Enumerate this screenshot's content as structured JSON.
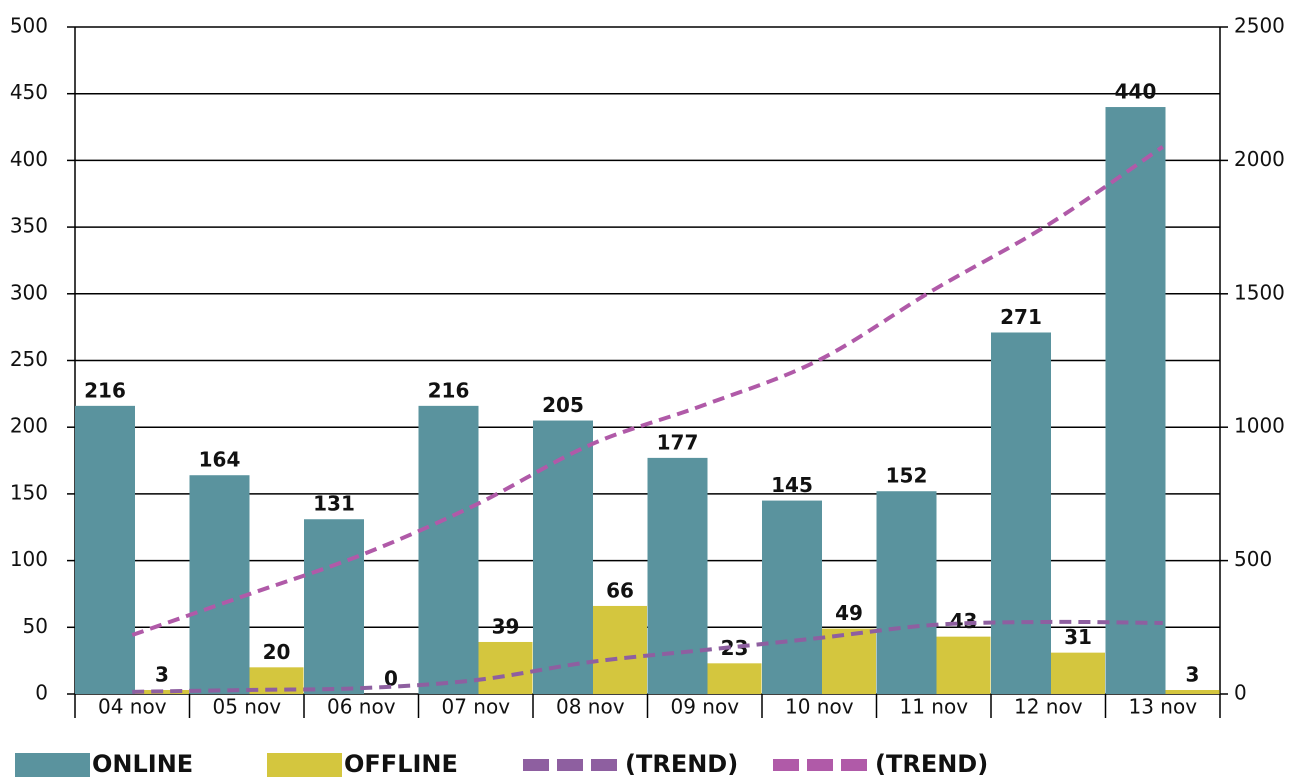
{
  "chart_data": {
    "type": "bar",
    "categories": [
      "04 nov",
      "05 nov",
      "06 nov",
      "07 nov",
      "08 nov",
      "09 nov",
      "10 nov",
      "11 nov",
      "12 nov",
      "13 nov"
    ],
    "series": [
      {
        "name": "ONLINE",
        "color": "#5a939e",
        "values": [
          216,
          164,
          131,
          216,
          205,
          177,
          145,
          152,
          271,
          440
        ]
      },
      {
        "name": "OFFLINE",
        "color": "#d4c63e",
        "values": [
          3,
          20,
          0,
          39,
          66,
          23,
          49,
          43,
          31,
          3
        ]
      },
      {
        "name": "(TREND)",
        "color": "#8e5fa0",
        "type": "line",
        "dashed": true,
        "axis": "y2",
        "values": [
          8,
          15,
          22,
          52,
          120,
          165,
          210,
          259,
          270,
          266
        ]
      },
      {
        "name": "(TREND)",
        "color": "#b05aa8",
        "type": "line",
        "dashed": true,
        "axis": "y2",
        "values": [
          221,
          371,
          521,
          709,
          934,
          1084,
          1252,
          1515,
          1759,
          2051
        ]
      }
    ],
    "ylim": [
      0,
      500
    ],
    "yticks": [
      0,
      50,
      100,
      150,
      200,
      250,
      300,
      350,
      400,
      450,
      500
    ],
    "y2lim": [
      0,
      2500
    ],
    "y2ticks": [
      0,
      500,
      1000,
      1500,
      2000,
      2500
    ],
    "grid": true,
    "legend": "bottom"
  }
}
